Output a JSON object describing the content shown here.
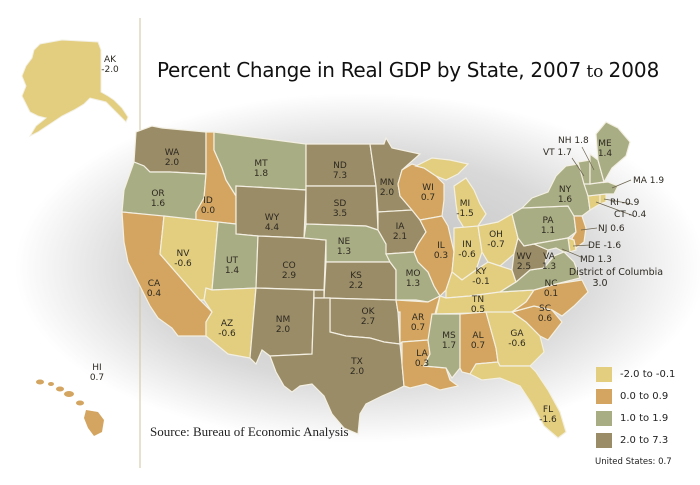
{
  "title": {
    "main": "Percent Change in Real GDP by State,",
    "year_start": "2007",
    "to": "to",
    "year_end": "2008"
  },
  "source": "Source: Bureau of Economic Analysis",
  "legend": [
    {
      "label": "-2.0 to -0.1",
      "color": "#e2ce7e"
    },
    {
      "label": "0.0 to 0.9",
      "color": "#d3a560"
    },
    {
      "label": "1.0 to 1.9",
      "color": "#a9ad84"
    },
    {
      "label": "2.0 to 7.3",
      "color": "#9a8c67"
    }
  ],
  "us_total": "United States: 0.7",
  "states": [
    {
      "abbr": "AK",
      "value": "-2.0"
    },
    {
      "abbr": "HI",
      "value": "0.7"
    },
    {
      "abbr": "WA",
      "value": "2.0"
    },
    {
      "abbr": "OR",
      "value": "1.6"
    },
    {
      "abbr": "CA",
      "value": "0.4"
    },
    {
      "abbr": "ID",
      "value": "0.0"
    },
    {
      "abbr": "NV",
      "value": "-0.6"
    },
    {
      "abbr": "MT",
      "value": "1.8"
    },
    {
      "abbr": "WY",
      "value": "4.4"
    },
    {
      "abbr": "UT",
      "value": "1.4"
    },
    {
      "abbr": "AZ",
      "value": "-0.6"
    },
    {
      "abbr": "CO",
      "value": "2.9"
    },
    {
      "abbr": "NM",
      "value": "2.0"
    },
    {
      "abbr": "ND",
      "value": "7.3"
    },
    {
      "abbr": "SD",
      "value": "3.5"
    },
    {
      "abbr": "NE",
      "value": "1.3"
    },
    {
      "abbr": "KS",
      "value": "2.2"
    },
    {
      "abbr": "OK",
      "value": "2.7"
    },
    {
      "abbr": "TX",
      "value": "2.0"
    },
    {
      "abbr": "MN",
      "value": "2.0"
    },
    {
      "abbr": "IA",
      "value": "2.1"
    },
    {
      "abbr": "MO",
      "value": "1.3"
    },
    {
      "abbr": "AR",
      "value": "0.7"
    },
    {
      "abbr": "LA",
      "value": "0.3"
    },
    {
      "abbr": "WI",
      "value": "0.7"
    },
    {
      "abbr": "IL",
      "value": "0.3"
    },
    {
      "abbr": "MI",
      "value": "-1.5"
    },
    {
      "abbr": "IN",
      "value": "-0.6"
    },
    {
      "abbr": "OH",
      "value": "-0.7"
    },
    {
      "abbr": "KY",
      "value": "-0.1"
    },
    {
      "abbr": "TN",
      "value": "0.5"
    },
    {
      "abbr": "MS",
      "value": "1.7"
    },
    {
      "abbr": "AL",
      "value": "0.7"
    },
    {
      "abbr": "GA",
      "value": "-0.6"
    },
    {
      "abbr": "FL",
      "value": "-1.6"
    },
    {
      "abbr": "SC",
      "value": "0.6"
    },
    {
      "abbr": "NC",
      "value": "0.1"
    },
    {
      "abbr": "VA",
      "value": "1.3"
    },
    {
      "abbr": "WV",
      "value": "2.5"
    },
    {
      "abbr": "PA",
      "value": "1.1"
    },
    {
      "abbr": "NY",
      "value": "1.6"
    },
    {
      "abbr": "ME",
      "value": "1.4"
    },
    {
      "abbr": "NH",
      "value": "1.8"
    },
    {
      "abbr": "VT",
      "value": "1.7"
    },
    {
      "abbr": "MA",
      "value": "1.9"
    },
    {
      "abbr": "RI",
      "value": "-0.9"
    },
    {
      "abbr": "CT",
      "value": "-0.4"
    },
    {
      "abbr": "NJ",
      "value": "0.6"
    },
    {
      "abbr": "DE",
      "value": "-1.6"
    },
    {
      "abbr": "MD",
      "value": "1.3"
    },
    {
      "abbr": "DC",
      "name": "District of Columbia",
      "value": "3.0"
    }
  ]
}
